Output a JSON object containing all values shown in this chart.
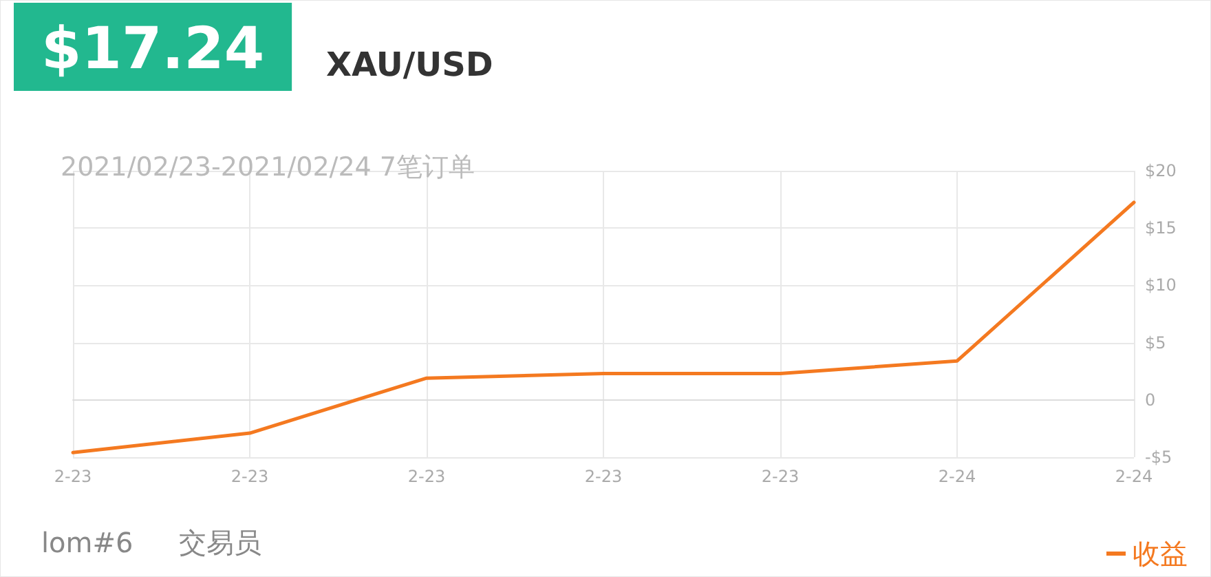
{
  "chart_data": {
    "type": "line",
    "title": "$17.24",
    "subtitle": "XAU/USD",
    "annotations": [
      "2021/02/23-2021/02/24 7笔订单",
      "lom#6",
      "交易员"
    ],
    "categories": [
      "2-23",
      "2-23",
      "2-23",
      "2-23",
      "2-23",
      "2-24",
      "2-24"
    ],
    "series": [
      {
        "name": "收益",
        "color": "#f47920",
        "values": [
          -4.6,
          -2.9,
          1.9,
          2.3,
          2.3,
          3.4,
          17.24
        ]
      }
    ],
    "ylim": [
      -5,
      20
    ],
    "yticks": [
      {
        "value": -5,
        "label": "-$5"
      },
      0,
      {
        "value": 5,
        "label": "$5"
      },
      {
        "value": 10,
        "label": "$10"
      },
      {
        "value": 15,
        "label": "$15"
      },
      {
        "value": 20,
        "label": "$20"
      }
    ],
    "grid": true,
    "legend": "bottom right",
    "marker": "none",
    "line_style": "solid"
  }
}
